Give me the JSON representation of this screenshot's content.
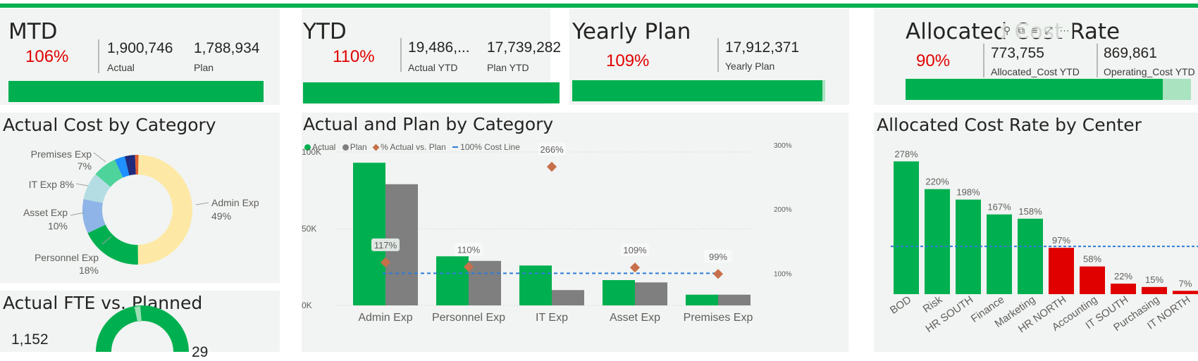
{
  "colors": {
    "green": "#00b050",
    "light_green": "#a9e3c0",
    "red": "#e00000",
    "gray": "#7f7f7f",
    "orange": "#c8704a",
    "blue_dash": "#2f7bd8",
    "tile_bg": "#f1f4f2"
  },
  "kpis": {
    "mtd": {
      "title": "MTD",
      "pct": "106%",
      "actual_value": "1,900,746",
      "actual_label": "Actual",
      "plan_value": "1,788,934",
      "plan_label": "Plan",
      "progress": 1.0
    },
    "ytd": {
      "title": "YTD",
      "pct": "110%",
      "actual_value": "19,486,...",
      "actual_label": "Actual YTD",
      "plan_value": "17,739,282",
      "plan_label": "Plan YTD",
      "progress": 1.0
    },
    "yearly": {
      "title": "Yearly Plan",
      "pct": "109%",
      "value": "17,912,371",
      "label": "Yearly Plan",
      "progress": 0.99
    },
    "allocated": {
      "title": "Allocated Cost Rate",
      "pct": "90%",
      "allocated_value": "773,755",
      "allocated_label": "Allocated_Cost YTD",
      "operating_value": "869,861",
      "operating_label": "Operating_Cost YTD",
      "progress": 0.9
    }
  },
  "hover_toolbar": {
    "icons": [
      "pin-icon",
      "copy-icon",
      "filter-icon",
      "focus-mode-icon",
      "more-options-icon"
    ],
    "glyphs": [
      "⚲",
      "⧉",
      "≡",
      "⤢",
      "⋯"
    ]
  },
  "donut": {
    "title": "Actual Cost by Category",
    "chart_data": {
      "type": "pie",
      "slices": [
        {
          "label": "Admin Exp",
          "pct_label": "49%",
          "value": 49,
          "color": "#fde9a5"
        },
        {
          "label": "Personnel Exp",
          "pct_label": "18%",
          "value": 18,
          "color": "#00b050"
        },
        {
          "label": "Asset Exp",
          "pct_label": "10%",
          "value": 10,
          "color": "#8fb4e8"
        },
        {
          "label": "IT Exp",
          "pct_label": "8%",
          "value": 8,
          "color": "#b4dde3"
        },
        {
          "label": "Premises Exp",
          "pct_label": "7%",
          "value": 7,
          "color": "#4ed39a"
        },
        {
          "label": "",
          "pct_label": "",
          "value": 3,
          "color": "#1e90ff"
        },
        {
          "label": "",
          "pct_label": "",
          "value": 3,
          "color": "#1f2a7a"
        },
        {
          "label": "",
          "pct_label": "",
          "value": 1,
          "color": "#e06030"
        }
      ]
    },
    "label_texts": {
      "premises": "Premises Exp",
      "premises_pct": "7%",
      "it": "IT Exp 8%",
      "asset": "Asset Exp",
      "asset_pct": "10%",
      "personnel": "Personnel Exp",
      "personnel_pct": "18%",
      "admin": "Admin Exp",
      "admin_pct": "49%"
    }
  },
  "fte": {
    "title": "Actual FTE vs. Planned",
    "actual_value": "1,152",
    "planned_value": "29"
  },
  "combo": {
    "title": "Actual and Plan by Category",
    "legend": {
      "actual": "Actual",
      "plan": "Plan",
      "pct": "% Actual vs. Plan",
      "cost_line": "100% Cost Line"
    },
    "chart_data": {
      "type": "bar",
      "categories": [
        "Admin Exp",
        "Personnel Exp",
        "IT Exp",
        "Asset Exp",
        "Premises Exp"
      ],
      "series": [
        {
          "name": "Actual",
          "values": [
            93000,
            32000,
            26000,
            16500,
            7000
          ],
          "color": "#00b050"
        },
        {
          "name": "Plan",
          "values": [
            79000,
            29000,
            10000,
            15000,
            7000
          ],
          "color": "#7f7f7f"
        }
      ],
      "pct_series": {
        "name": "% Actual vs. Plan",
        "values": [
          117,
          110,
          266,
          109,
          99
        ],
        "labels": [
          "117%",
          "110%",
          "266%",
          "109%",
          "99%"
        ]
      },
      "cost_line": {
        "name": "100% Cost Line",
        "value": 100
      },
      "ylim": [
        0,
        100000
      ],
      "y_ticks": [
        0,
        50000,
        100000
      ],
      "y_tick_labels": [
        "0K",
        "50K",
        "100K"
      ],
      "y2lim": [
        50,
        300
      ],
      "y2_ticks": [
        100,
        200,
        300
      ],
      "y2_tick_labels": [
        "100%",
        "200%",
        "300%"
      ],
      "grid": true
    }
  },
  "rate": {
    "title": "Allocated Cost Rate by Center",
    "chart_data": {
      "type": "bar",
      "categories": [
        "BOD",
        "Risk",
        "HR SOUTH",
        "Finance",
        "Marketing",
        "HR NORTH",
        "Accounting",
        "IT SOUTH",
        "Purchasing",
        "IT NORTH"
      ],
      "values": [
        278,
        220,
        198,
        167,
        158,
        97,
        58,
        22,
        15,
        7
      ],
      "labels": [
        "278%",
        "220%",
        "198%",
        "167%",
        "158%",
        "97%",
        "58%",
        "22%",
        "15%",
        "7%"
      ],
      "reference_line": 100,
      "ylim": [
        0,
        280
      ],
      "above_color": "#00b050",
      "below_color": "#e00000"
    }
  }
}
